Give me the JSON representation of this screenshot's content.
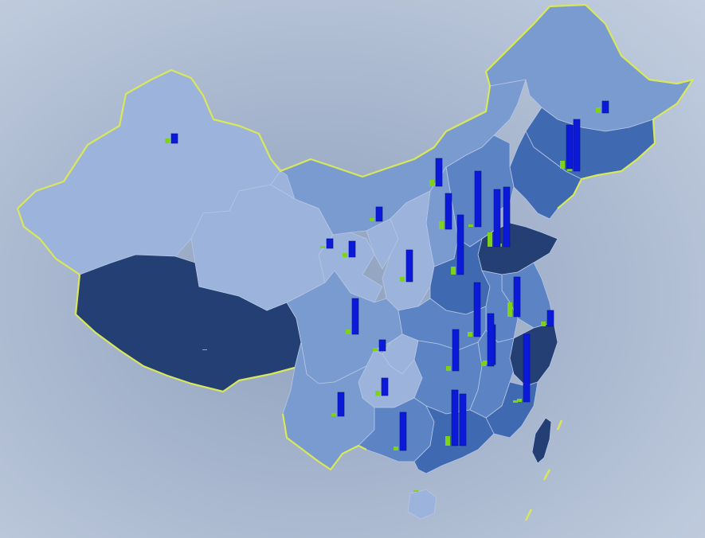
{
  "map": {
    "colors": {
      "border": "#d8e85a",
      "light": "#9cb3dc",
      "mid": "#7a9bd0",
      "midDark": "#5c84c4",
      "dark": "#3f6ab2",
      "darkest": "#233f73",
      "tall_bar": "#0b1ad8",
      "short_bar": "#7fd21a"
    }
  },
  "chart_data": {
    "type": "bar",
    "title": "",
    "series": [
      {
        "name": "",
        "color": "#0b1ad8"
      },
      {
        "name": "",
        "color": "#7fd21a"
      }
    ],
    "regions": [
      {
        "id": "xinjiang",
        "tall": 12,
        "short": 6
      },
      {
        "id": "heilongjiang",
        "tall": 15,
        "short": 7
      },
      {
        "id": "jilin",
        "tall": 65,
        "short": 5
      },
      {
        "id": "liaoning",
        "tall": 55,
        "short": 10
      },
      {
        "id": "inner-mongolia",
        "tall": 35,
        "short": 8
      },
      {
        "id": "beijing",
        "tall": 70,
        "short": 3
      },
      {
        "id": "tianjin",
        "tall": 75,
        "short": 4
      },
      {
        "id": "hebei",
        "tall": 45,
        "short": 10
      },
      {
        "id": "shanxi",
        "tall": 75,
        "short": 10
      },
      {
        "id": "shandong",
        "tall": 72,
        "short": 18
      },
      {
        "id": "ningxia",
        "tall": 18,
        "short": 4
      },
      {
        "id": "gansu",
        "tall": 12,
        "short": 3
      },
      {
        "id": "qinghai",
        "tall": 20,
        "short": 5
      },
      {
        "id": "shaanxi",
        "tall": 40,
        "short": 6
      },
      {
        "id": "henan",
        "tall": 68,
        "short": 6
      },
      {
        "id": "jiangsu",
        "tall": 50,
        "short": 18
      },
      {
        "id": "anhui",
        "tall": 50,
        "short": 5
      },
      {
        "id": "shanghai",
        "tall": 20,
        "short": 6
      },
      {
        "id": "sichuan",
        "tall": 45,
        "short": 6
      },
      {
        "id": "chongqing",
        "tall": 14,
        "short": 4
      },
      {
        "id": "hubei",
        "tall": 52,
        "short": 6
      },
      {
        "id": "hunan",
        "tall": 65,
        "short": 6
      },
      {
        "id": "zhejiang",
        "tall": 85,
        "short": 4
      },
      {
        "id": "guizhou",
        "tall": 22,
        "short": 6
      },
      {
        "id": "jiangxi",
        "tall": 66,
        "short": 5
      },
      {
        "id": "fujian",
        "tall": 0,
        "short": 3
      },
      {
        "id": "yunnan",
        "tall": 30,
        "short": 4
      },
      {
        "id": "guangxi",
        "tall": 48,
        "short": 5
      },
      {
        "id": "guangdong",
        "tall": 70,
        "short": 12
      },
      {
        "id": "hainan",
        "tall": 0,
        "short": 2
      },
      {
        "id": "tibet",
        "tall": 0,
        "short": 1
      },
      {
        "id": "taiwan",
        "tall": 0,
        "short": 0
      }
    ]
  }
}
